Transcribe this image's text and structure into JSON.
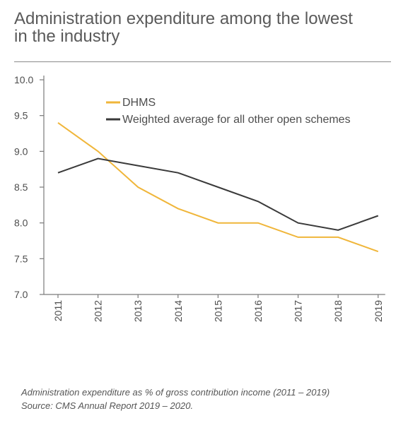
{
  "header": {
    "title_line1": "Administration expenditure among the lowest",
    "title_line2": "in the industry"
  },
  "caption": {
    "line1": "Administration expenditure as % of gross contribution income (2011 – 2019)",
    "line2": "Source: CMS Annual Report 2019 – 2020."
  },
  "chart_data": {
    "type": "line",
    "x": [
      "2011",
      "2012",
      "2013",
      "2014",
      "2015",
      "2016",
      "2017",
      "2018",
      "2019"
    ],
    "series": [
      {
        "name": "DHMS",
        "color": "#f0b63a",
        "values": [
          9.4,
          9.0,
          8.5,
          8.2,
          8.0,
          8.0,
          7.8,
          7.8,
          7.6
        ]
      },
      {
        "name": "Weighted average for all other open schemes",
        "color": "#3a3a3a",
        "values": [
          8.7,
          8.9,
          8.8,
          8.7,
          8.5,
          8.3,
          8.0,
          7.9,
          8.1
        ]
      }
    ],
    "ylim": [
      7.0,
      10.0
    ],
    "yticks": [
      "7.0",
      "7.5",
      "8.0",
      "8.5",
      "9.0",
      "9.5",
      "10.0"
    ],
    "grid": false,
    "legend_position": "top-right"
  }
}
